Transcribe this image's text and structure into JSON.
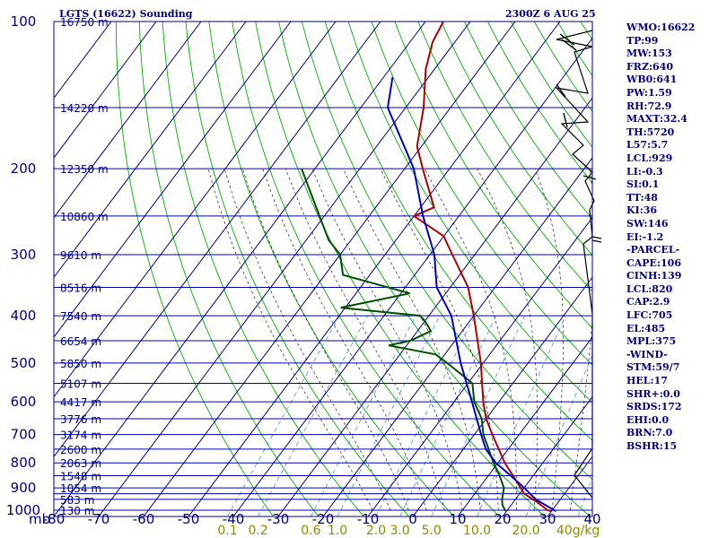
{
  "header": {
    "station": "LGTS (16622) Sounding",
    "time": "2300Z  6 AUG 25"
  },
  "indices": [
    "WMO:16622",
    "TP:99",
    "MW:153",
    "FRZ:640",
    "WB0:641",
    "PW:1.59",
    "RH:72.9",
    "MAXT:32.4",
    "TH:5720",
    "L57:5.7",
    "LCL:929",
    "LI:-0.3",
    "SI:0.1",
    "TT:48",
    "KI:36",
    "SW:146",
    "EI:-1.2",
    "-PARCEL-",
    "CAPE:106",
    "CINH:139",
    "LCL:820",
    "CAP:2.9",
    "LFC:705",
    "EL:485",
    "MPL:375",
    "-WIND-",
    "STM:59/7",
    "HEL:17",
    "SHR+:0.0",
    "SRDS:172",
    "EHI:0.0",
    "BRN:7.0",
    "BSHR:15"
  ],
  "colors": {
    "frame": "#000080",
    "isobar": "#0000b0",
    "isotherm": "#000080",
    "dry_adiabat": "#00b000",
    "moist_adiabat": "#000000",
    "mixing_ratio": "#5a9fd4",
    "temperature": "#b00000",
    "dewpoint": "#005000",
    "parcel": "#0000c0",
    "mixing_ratio_label": "#8b8b00"
  },
  "chart_data": {
    "type": "line",
    "chart_kind": "skew-T log-P sounding",
    "pressure_axis_label": "mb",
    "pressure_ticks": [
      100,
      200,
      300,
      400,
      500,
      600,
      700,
      800,
      900,
      1000
    ],
    "isobars": [
      100,
      150,
      200,
      250,
      300,
      350,
      400,
      450,
      500,
      550,
      600,
      650,
      700,
      750,
      800,
      850,
      900,
      925,
      950,
      1000,
      1030
    ],
    "pressure_range": [
      1030,
      100
    ],
    "temperature_ticks": [
      "-80",
      "-70",
      "-60",
      "-50",
      "-40",
      "-30",
      "-20",
      "-10",
      "0",
      "10",
      "20",
      "30",
      "40"
    ],
    "temperature_range": [
      -80,
      40
    ],
    "height_labels": [
      {
        "p": 100,
        "text": "16750 m"
      },
      {
        "p": 150,
        "text": "14220 m"
      },
      {
        "p": 200,
        "text": "12350 m"
      },
      {
        "p": 250,
        "text": "10860 m"
      },
      {
        "p": 300,
        "text": "9610 m"
      },
      {
        "p": 350,
        "text": "8516 m"
      },
      {
        "p": 400,
        "text": "7540 m"
      },
      {
        "p": 450,
        "text": "6654 m"
      },
      {
        "p": 500,
        "text": "5850 m"
      },
      {
        "p": 550,
        "text": "5107 m"
      },
      {
        "p": 600,
        "text": "4417 m"
      },
      {
        "p": 650,
        "text": "3776 m"
      },
      {
        "p": 700,
        "text": "3174 m"
      },
      {
        "p": 750,
        "text": "2600 m"
      },
      {
        "p": 800,
        "text": "2063 m"
      },
      {
        "p": 850,
        "text": "1548 m"
      },
      {
        "p": 900,
        "text": "1054 m"
      },
      {
        "p": 950,
        "text": "583 m"
      },
      {
        "p": 1000,
        "text": "130 m"
      }
    ],
    "mixing_ratio_labels": [
      "0.1",
      "0.2",
      "0.6",
      "1.0",
      "2.0",
      "3.0",
      "5.0",
      "10.0",
      "20.0",
      "40g/kg"
    ],
    "mixing_ratio_values": [
      0.1,
      0.2,
      0.6,
      1.0,
      2.0,
      3.0,
      5.0,
      10.0,
      20.0,
      40.0
    ],
    "series": [
      {
        "key": "temperature",
        "points": [
          [
            1005,
            30.0
          ],
          [
            1000,
            29.0
          ],
          [
            960,
            25.0
          ],
          [
            925,
            21.0
          ],
          [
            850,
            15.5
          ],
          [
            800,
            11.5
          ],
          [
            700,
            4.0
          ],
          [
            650,
            0.0
          ],
          [
            600,
            -3.5
          ],
          [
            500,
            -10.5
          ],
          [
            400,
            -20.0
          ],
          [
            350,
            -26.0
          ],
          [
            300,
            -35.0
          ],
          [
            275,
            -40.0
          ],
          [
            250,
            -50.0
          ],
          [
            240,
            -47.0
          ],
          [
            200,
            -56.0
          ],
          [
            180,
            -61.0
          ],
          [
            150,
            -66.0
          ],
          [
            125,
            -72.0
          ],
          [
            110,
            -75.0
          ],
          [
            100,
            -76.0
          ]
        ]
      },
      {
        "key": "dewpoint",
        "points": [
          [
            1005,
            20.0
          ],
          [
            1000,
            19.5
          ],
          [
            975,
            18.0
          ],
          [
            950,
            17.0
          ],
          [
            900,
            15.5
          ],
          [
            850,
            12.5
          ],
          [
            800,
            9.0
          ],
          [
            700,
            2.0
          ],
          [
            650,
            -1.0
          ],
          [
            600,
            -5.5
          ],
          [
            550,
            -9.0
          ],
          [
            500,
            -18.0
          ],
          [
            480,
            -22.0
          ],
          [
            460,
            -34.0
          ],
          [
            450,
            -30.0
          ],
          [
            430,
            -27.0
          ],
          [
            410,
            -30.0
          ],
          [
            400,
            -32.0
          ],
          [
            385,
            -51.0
          ],
          [
            360,
            -38.0
          ],
          [
            330,
            -56.0
          ],
          [
            300,
            -60.0
          ],
          [
            280,
            -65.0
          ],
          [
            255,
            -70.0
          ],
          [
            200,
            -83.0
          ]
        ]
      },
      {
        "key": "parcel",
        "points": [
          [
            1005,
            31.0
          ],
          [
            950,
            24.5
          ],
          [
            900,
            20.0
          ],
          [
            850,
            15.0
          ],
          [
            800,
            9.5
          ],
          [
            750,
            5.0
          ],
          [
            700,
            1.5
          ],
          [
            600,
            -6.0
          ],
          [
            500,
            -15.0
          ],
          [
            400,
            -25.0
          ],
          [
            350,
            -33.0
          ],
          [
            300,
            -39.0
          ],
          [
            250,
            -48.0
          ],
          [
            200,
            -58.0
          ],
          [
            150,
            -74.0
          ],
          [
            130,
            -78.0
          ]
        ]
      }
    ]
  }
}
